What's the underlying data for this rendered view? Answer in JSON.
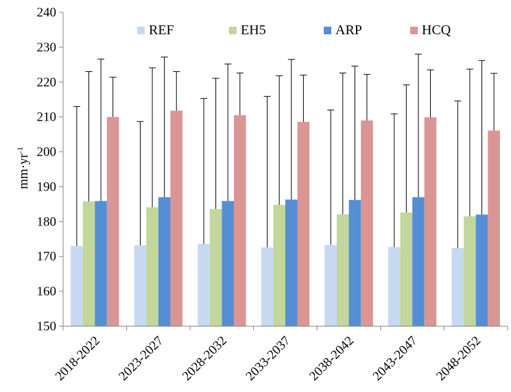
{
  "chart_data": {
    "type": "bar",
    "title": "",
    "xlabel": "",
    "ylabel_base": "mm·yr",
    "ylabel_sup": "-1",
    "ylim": [
      150,
      240
    ],
    "yticks": [
      150,
      160,
      170,
      180,
      190,
      200,
      210,
      220,
      230,
      240
    ],
    "categories": [
      "2018-2022",
      "2023-2027",
      "2028-2032",
      "2033-2037",
      "2038-2042",
      "2043-2047",
      "2048-2052"
    ],
    "legend_position": "top",
    "series": [
      {
        "name": "REF",
        "color": "#c6d9f1",
        "values": [
          173.0,
          173.2,
          173.6,
          172.6,
          173.3,
          172.7,
          172.4
        ],
        "errors": [
          40.0,
          35.5,
          41.7,
          43.3,
          38.7,
          38.2,
          42.2
        ]
      },
      {
        "name": "EH5",
        "color": "#c3d69b",
        "values": [
          185.8,
          184.1,
          183.6,
          184.8,
          182.1,
          182.6,
          181.5
        ],
        "errors": [
          37.2,
          40.0,
          37.5,
          37.0,
          40.5,
          36.6,
          42.2
        ]
      },
      {
        "name": "ARP",
        "color": "#558ed5",
        "values": [
          185.9,
          187.0,
          185.9,
          186.3,
          186.2,
          187.0,
          182.0
        ],
        "errors": [
          40.7,
          40.2,
          39.3,
          40.2,
          38.4,
          41.0,
          44.2
        ]
      },
      {
        "name": "HCQ",
        "color": "#d99694",
        "values": [
          210.0,
          211.8,
          210.5,
          208.6,
          209.0,
          209.9,
          206.1
        ],
        "errors": [
          11.4,
          11.2,
          12.1,
          13.4,
          13.2,
          13.6,
          16.4
        ]
      }
    ]
  }
}
